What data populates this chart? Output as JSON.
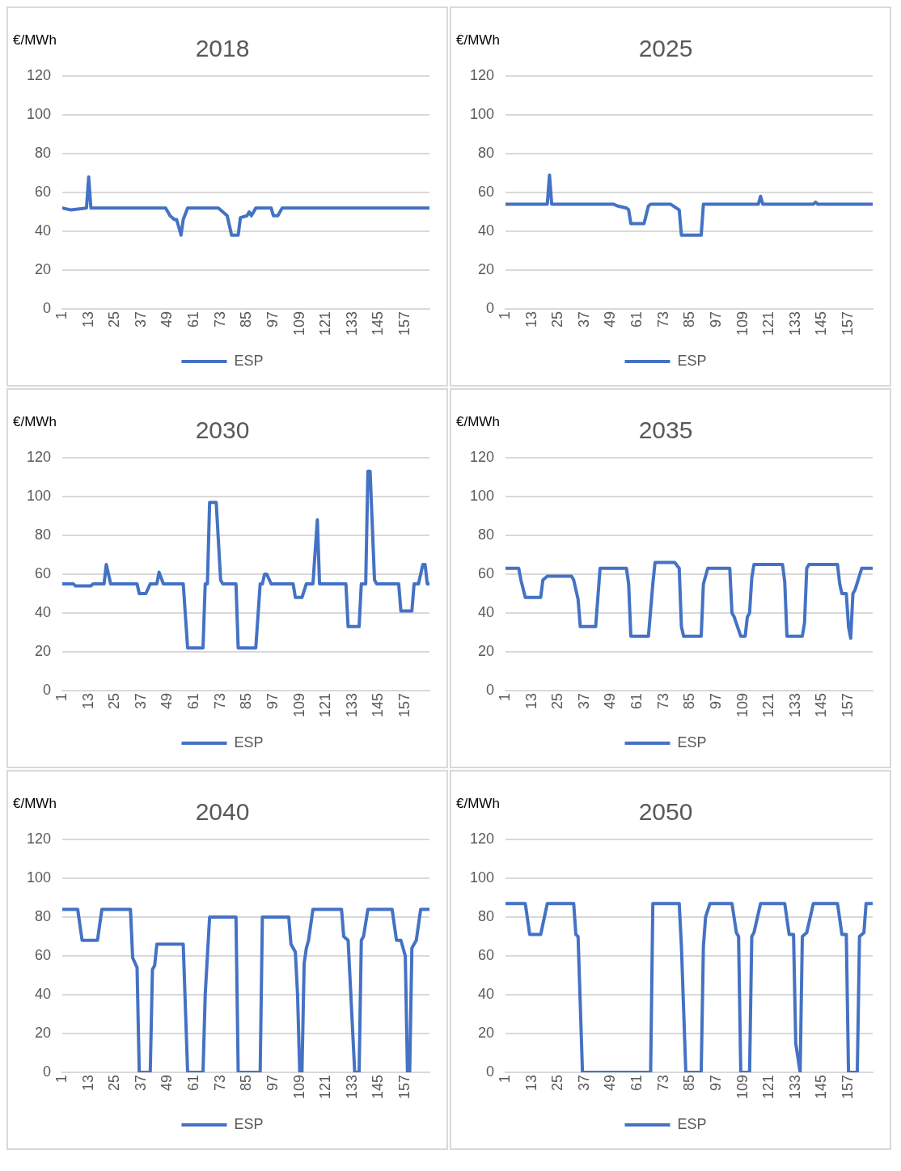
{
  "chart_data": [
    {
      "type": "line",
      "title": "2018",
      "ylabel": "€/MWh",
      "xlim": [
        1,
        168
      ],
      "xticks": [
        1,
        13,
        25,
        37,
        49,
        61,
        73,
        85,
        97,
        109,
        121,
        133,
        145,
        157
      ],
      "ylim": [
        0,
        120
      ],
      "yticks": [
        0,
        20,
        40,
        60,
        80,
        100,
        120
      ],
      "grid": "y",
      "legend": "bottom",
      "marker": "none",
      "line_style": "solid",
      "x": [
        1,
        5,
        12,
        13,
        14,
        48,
        50,
        52,
        53,
        55,
        56,
        58,
        72,
        74,
        76,
        78,
        81,
        82,
        85,
        86,
        87,
        89,
        96,
        97,
        99,
        101,
        168
      ],
      "series": [
        {
          "name": "ESP",
          "color": "#4472c4",
          "values": [
            52,
            51,
            52,
            68,
            52,
            52,
            48,
            46,
            46,
            38,
            46,
            52,
            52,
            50,
            48,
            38,
            38,
            47,
            48,
            50,
            48,
            52,
            52,
            48,
            48,
            52,
            52
          ]
        }
      ]
    },
    {
      "type": "line",
      "title": "2025",
      "ylabel": "€/MWh",
      "xlim": [
        1,
        168
      ],
      "xticks": [
        1,
        13,
        25,
        37,
        49,
        61,
        73,
        85,
        97,
        109,
        121,
        133,
        145,
        157
      ],
      "ylim": [
        0,
        120
      ],
      "yticks": [
        0,
        20,
        40,
        60,
        80,
        100,
        120
      ],
      "grid": "y",
      "legend": "bottom",
      "marker": "none",
      "line_style": "solid",
      "x": [
        1,
        20,
        21,
        22,
        50,
        52,
        56,
        57,
        58,
        64,
        66,
        67,
        76,
        80,
        81,
        82,
        90,
        91,
        116,
        117,
        118,
        141,
        142,
        143,
        168
      ],
      "series": [
        {
          "name": "ESP",
          "color": "#4472c4",
          "values": [
            54,
            54,
            69,
            54,
            54,
            53,
            52,
            51,
            44,
            44,
            53,
            54,
            54,
            51,
            38,
            38,
            38,
            54,
            54,
            58,
            54,
            54,
            55,
            54,
            54
          ]
        }
      ]
    },
    {
      "type": "line",
      "title": "2030",
      "ylabel": "€/MWh",
      "xlim": [
        1,
        168
      ],
      "xticks": [
        1,
        13,
        25,
        37,
        49,
        61,
        73,
        85,
        97,
        109,
        121,
        133,
        145,
        157
      ],
      "ylim": [
        0,
        120
      ],
      "yticks": [
        0,
        20,
        40,
        60,
        80,
        100,
        120
      ],
      "grid": "y",
      "legend": "bottom",
      "marker": "none",
      "line_style": "solid",
      "x": [
        1,
        6,
        7,
        14,
        15,
        20,
        21,
        23,
        35,
        36,
        39,
        41,
        44,
        45,
        47,
        56,
        58,
        65,
        66,
        67,
        68,
        71,
        73,
        74,
        80,
        81,
        89,
        91,
        92,
        93,
        94,
        96,
        106,
        107,
        110,
        112,
        115,
        117,
        118,
        130,
        131,
        136,
        137,
        139,
        140,
        141,
        143,
        144,
        154,
        155,
        160,
        161,
        163,
        165,
        166,
        167,
        168
      ],
      "series": [
        {
          "name": "ESP",
          "color": "#4472c4",
          "values": [
            55,
            55,
            54,
            54,
            55,
            55,
            65,
            55,
            55,
            50,
            50,
            55,
            55,
            61,
            55,
            55,
            22,
            22,
            55,
            55,
            97,
            97,
            57,
            55,
            55,
            22,
            22,
            55,
            55,
            60,
            60,
            55,
            55,
            48,
            48,
            55,
            55,
            88,
            55,
            55,
            33,
            33,
            55,
            55,
            113,
            113,
            57,
            55,
            55,
            41,
            41,
            55,
            55,
            65,
            65,
            55,
            55
          ]
        }
      ]
    },
    {
      "type": "line",
      "title": "2035",
      "ylabel": "€/MWh",
      "xlim": [
        1,
        168
      ],
      "xticks": [
        1,
        13,
        25,
        37,
        49,
        61,
        73,
        85,
        97,
        109,
        121,
        133,
        145,
        157
      ],
      "ylim": [
        0,
        120
      ],
      "yticks": [
        0,
        20,
        40,
        60,
        80,
        100,
        120
      ],
      "grid": "y",
      "legend": "bottom",
      "marker": "none",
      "line_style": "solid",
      "x": [
        1,
        7,
        8,
        10,
        17,
        18,
        20,
        31,
        32,
        34,
        35,
        42,
        44,
        56,
        57,
        58,
        66,
        68,
        69,
        78,
        80,
        81,
        82,
        90,
        91,
        93,
        103,
        104,
        105,
        108,
        110,
        111,
        112,
        113,
        114,
        127,
        128,
        129,
        136,
        137,
        138,
        139,
        152,
        153,
        154,
        156,
        157,
        158,
        159,
        160,
        163,
        168
      ],
      "series": [
        {
          "name": "ESP",
          "color": "#4472c4",
          "values": [
            63,
            63,
            57,
            48,
            48,
            57,
            59,
            59,
            57,
            47,
            33,
            33,
            63,
            63,
            55,
            28,
            28,
            55,
            66,
            66,
            63,
            33,
            28,
            28,
            55,
            63,
            63,
            40,
            38,
            28,
            28,
            38,
            40,
            58,
            65,
            65,
            56,
            28,
            28,
            35,
            63,
            65,
            65,
            55,
            50,
            50,
            33,
            27,
            50,
            52,
            63,
            63
          ]
        }
      ]
    },
    {
      "type": "line",
      "title": "2040",
      "ylabel": "€/MWh",
      "xlim": [
        1,
        168
      ],
      "xticks": [
        1,
        13,
        25,
        37,
        49,
        61,
        73,
        85,
        97,
        109,
        121,
        133,
        145,
        157
      ],
      "ylim": [
        0,
        120
      ],
      "yticks": [
        0,
        20,
        40,
        60,
        80,
        100,
        120
      ],
      "grid": "y",
      "legend": "bottom",
      "marker": "none",
      "line_style": "solid",
      "x": [
        1,
        8,
        10,
        17,
        19,
        32,
        33,
        35,
        36,
        41,
        42,
        43,
        44,
        56,
        58,
        65,
        66,
        68,
        80,
        81,
        91,
        92,
        104,
        105,
        107,
        108,
        109,
        110,
        111,
        112,
        113,
        115,
        128,
        129,
        131,
        134,
        136,
        137,
        138,
        140,
        151,
        153,
        155,
        157,
        158,
        159,
        160,
        162,
        164,
        168
      ],
      "series": [
        {
          "name": "ESP",
          "color": "#4472c4",
          "values": [
            84,
            84,
            68,
            68,
            84,
            84,
            59,
            54,
            0,
            0,
            53,
            55,
            66,
            66,
            0,
            0,
            40,
            80,
            80,
            0,
            0,
            80,
            80,
            66,
            62,
            40,
            0,
            0,
            56,
            64,
            68,
            84,
            84,
            70,
            68,
            0,
            0,
            68,
            70,
            84,
            84,
            68,
            68,
            60,
            0,
            0,
            64,
            68,
            84,
            84
          ]
        }
      ]
    },
    {
      "type": "line",
      "title": "2050",
      "ylabel": "€/MWh",
      "xlim": [
        1,
        168
      ],
      "xticks": [
        1,
        13,
        25,
        37,
        49,
        61,
        73,
        85,
        97,
        109,
        121,
        133,
        145,
        157
      ],
      "ylim": [
        0,
        120
      ],
      "yticks": [
        0,
        20,
        40,
        60,
        80,
        100,
        120
      ],
      "grid": "y",
      "legend": "bottom",
      "marker": "none",
      "line_style": "solid",
      "x": [
        1,
        10,
        12,
        17,
        20,
        32,
        33,
        34,
        36,
        67,
        68,
        80,
        81,
        83,
        90,
        91,
        92,
        94,
        104,
        106,
        107,
        108,
        112,
        113,
        114,
        117,
        128,
        130,
        132,
        133,
        135,
        136,
        138,
        141,
        152,
        154,
        156,
        157,
        161,
        162,
        164,
        165,
        168
      ],
      "series": [
        {
          "name": "ESP",
          "color": "#4472c4",
          "values": [
            87,
            87,
            71,
            71,
            87,
            87,
            71,
            70,
            0,
            0,
            87,
            87,
            65,
            0,
            0,
            65,
            80,
            87,
            87,
            72,
            70,
            0,
            0,
            70,
            72,
            87,
            87,
            71,
            71,
            15,
            0,
            70,
            72,
            87,
            87,
            71,
            71,
            0,
            0,
            70,
            72,
            87,
            87
          ]
        }
      ]
    }
  ]
}
